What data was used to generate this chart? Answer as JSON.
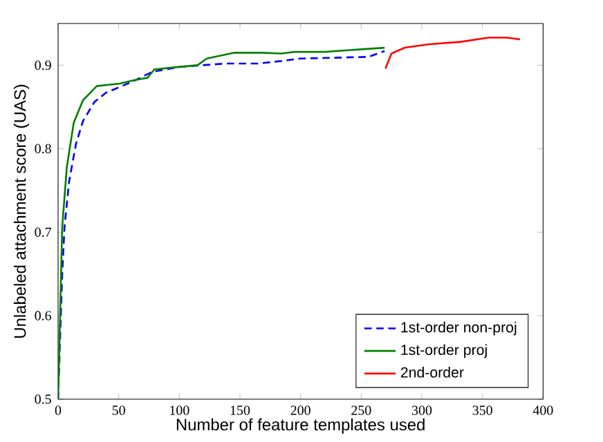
{
  "chart_data": {
    "type": "line",
    "xlabel": "Number of feature templates used",
    "ylabel": "Unlabeled attachment score (UAS)",
    "xlim": [
      0,
      400
    ],
    "ylim": [
      0.5,
      0.95
    ],
    "xticks": [
      0,
      50,
      100,
      150,
      200,
      250,
      300,
      350,
      400
    ],
    "yticks": [
      0.5,
      0.6,
      0.7,
      0.8,
      0.9
    ],
    "legend": "bottom right",
    "grid": false,
    "series": [
      {
        "name": "1st-order non-proj",
        "color": "#0000ff",
        "line_style": "dashed",
        "x": [
          0,
          3.4,
          5.3,
          9.1,
          14.8,
          20.5,
          30,
          39.5,
          50.9,
          62.3,
          77.5,
          100,
          119,
          138,
          164.5,
          184,
          200,
          256,
          269.3
        ],
        "values": [
          0.5,
          0.65,
          0.706,
          0.761,
          0.806,
          0.833,
          0.856,
          0.867,
          0.874,
          0.881,
          0.892,
          0.898,
          0.9,
          0.902,
          0.902,
          0.905,
          0.908,
          0.91,
          0.917
        ]
      },
      {
        "name": "1st-order proj",
        "color": "#008000",
        "line_style": "solid",
        "x": [
          0,
          3.4,
          7.2,
          12.9,
          20.5,
          31.9,
          50.9,
          62.3,
          73.7,
          79.4,
          100,
          115,
          122.7,
          145.5,
          168,
          184,
          195,
          220,
          269.3
        ],
        "values": [
          0.5,
          0.706,
          0.778,
          0.831,
          0.858,
          0.875,
          0.878,
          0.882,
          0.885,
          0.895,
          0.898,
          0.9,
          0.908,
          0.915,
          0.915,
          0.914,
          0.916,
          0.916,
          0.921
        ]
      },
      {
        "name": "2nd-order",
        "color": "#ff0000",
        "line_style": "solid",
        "x": [
          270,
          275,
          286,
          305,
          332,
          355,
          370,
          381
        ],
        "values": [
          0.896,
          0.914,
          0.921,
          0.925,
          0.928,
          0.933,
          0.933,
          0.931
        ]
      }
    ]
  }
}
